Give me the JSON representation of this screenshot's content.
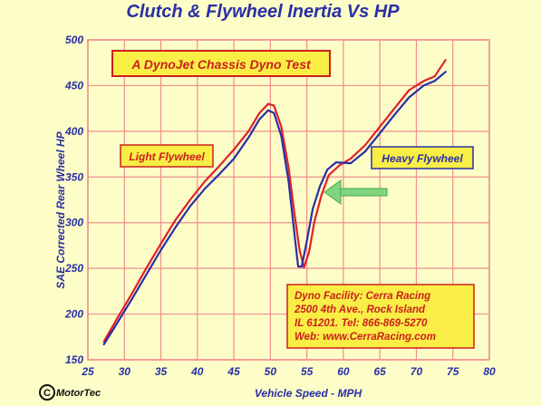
{
  "chart_data": {
    "type": "line",
    "title": "Clutch & Flywheel Inertia Vs HP",
    "xlabel": "Vehicle Speed - MPH",
    "ylabel": "SAE Corrected Rear Wheel HP",
    "xlim": [
      25,
      80
    ],
    "ylim": [
      150,
      500
    ],
    "xticks": [
      25,
      30,
      35,
      40,
      45,
      50,
      55,
      60,
      65,
      70,
      75,
      80
    ],
    "yticks": [
      150,
      200,
      250,
      300,
      350,
      400,
      450,
      500
    ],
    "grid": true,
    "series": [
      {
        "name": "Light Flywheel",
        "color": "#e0202a",
        "x": [
          27.2,
          29,
          31,
          33,
          35,
          37,
          39,
          41,
          43,
          45,
          47,
          48.5,
          49.7,
          50.5,
          51.5,
          52.5,
          53.3,
          54.0,
          54.6,
          55.3,
          56.0,
          57.0,
          58.0,
          59.5,
          61,
          63,
          65,
          67,
          69,
          71,
          72.5,
          74
        ],
        "y": [
          170,
          195,
          222,
          250,
          277,
          303,
          325,
          345,
          362,
          380,
          400,
          420,
          430,
          428,
          405,
          360,
          310,
          270,
          251,
          268,
          300,
          330,
          352,
          363,
          370,
          385,
          405,
          425,
          445,
          455,
          460,
          478
        ]
      },
      {
        "name": "Heavy Flywheel",
        "color": "#2a2fa6",
        "x": [
          27.2,
          29,
          31,
          33,
          35,
          37,
          39,
          41,
          43,
          45,
          47,
          48.5,
          49.7,
          50.5,
          51.5,
          52.5,
          53.2,
          53.8,
          54.3,
          55.0,
          55.8,
          56.8,
          57.8,
          59,
          61,
          63,
          65,
          67,
          69,
          71,
          72.5,
          74
        ],
        "y": [
          167,
          190,
          216,
          243,
          270,
          295,
          318,
          337,
          353,
          370,
          393,
          413,
          423,
          420,
          395,
          345,
          295,
          252,
          252,
          280,
          315,
          340,
          358,
          366,
          365,
          378,
          398,
          418,
          437,
          450,
          455,
          465
        ]
      }
    ],
    "annotations": {
      "test_box": "A DynoJet Chassis Dyno Test",
      "light_label": "Light Flywheel",
      "heavy_label": "Heavy Flywheel",
      "info_lines": [
        "Dyno  Facility: Cerra Racing",
        "2500  4th Ave.,  Rock Island",
        "IL  61201. Tel: 866-869-5270",
        "Web: www.CerraRacing.com"
      ],
      "logo": "MotorTec"
    },
    "colors": {
      "background": "#fdfdc8",
      "grid": "#ef8f8f",
      "text": "#2a2fa6",
      "arrow": "#7fd67f",
      "box_fill": "#f8ee45",
      "box_border": "#cc1f1f"
    }
  }
}
